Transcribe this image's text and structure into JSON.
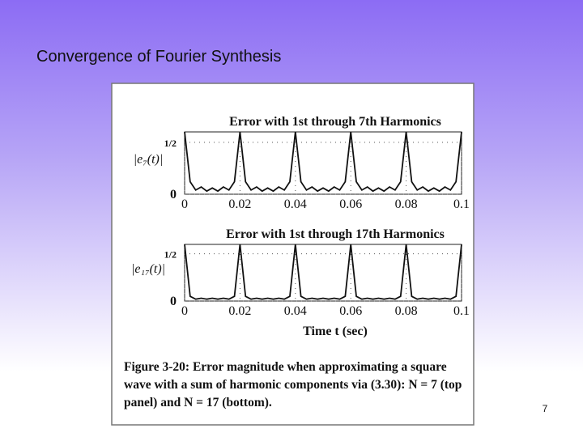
{
  "slide": {
    "title": "Convergence of Fourier Synthesis",
    "page_number": "7"
  },
  "figure": {
    "label": "Figure 3-20:",
    "text": "Error magnitude when approximating a square wave with a sum of harmonic components via (3.30): N = 7 (top panel) and N = 17 (bottom)."
  },
  "chart_data": [
    {
      "type": "line",
      "title": "Error with 1st through 7th Harmonics",
      "ylabel": "|e₇(t)|",
      "color": "#111111",
      "grid": true,
      "xlim": [
        0,
        0.1
      ],
      "xticks": [
        0,
        0.02,
        0.04,
        0.06,
        0.08,
        0.1
      ],
      "ylim": [
        0,
        0.6
      ],
      "yticks": [
        0,
        {
          "value": 0.5,
          "label": "1/2"
        }
      ],
      "x": [
        0,
        0.002,
        0.004,
        0.006,
        0.008,
        0.01,
        0.012,
        0.014,
        0.016,
        0.018,
        0.02,
        0.022,
        0.024,
        0.026,
        0.028,
        0.03,
        0.032,
        0.034,
        0.036,
        0.038,
        0.04,
        0.042,
        0.044,
        0.046,
        0.048,
        0.05,
        0.052,
        0.054,
        0.056,
        0.058,
        0.06,
        0.062,
        0.064,
        0.066,
        0.068,
        0.07,
        0.072,
        0.074,
        0.076,
        0.078,
        0.08,
        0.082,
        0.084,
        0.086,
        0.088,
        0.09,
        0.092,
        0.094,
        0.096,
        0.098,
        0.1
      ],
      "values": [
        0.6,
        0.12,
        0.04,
        0.07,
        0.03,
        0.06,
        0.03,
        0.07,
        0.04,
        0.12,
        0.6,
        0.12,
        0.04,
        0.07,
        0.03,
        0.06,
        0.03,
        0.07,
        0.04,
        0.12,
        0.6,
        0.12,
        0.04,
        0.07,
        0.03,
        0.06,
        0.03,
        0.07,
        0.04,
        0.12,
        0.6,
        0.12,
        0.04,
        0.07,
        0.03,
        0.06,
        0.03,
        0.07,
        0.04,
        0.12,
        0.6,
        0.12,
        0.04,
        0.07,
        0.03,
        0.06,
        0.03,
        0.07,
        0.04,
        0.12,
        0.6
      ]
    },
    {
      "type": "line",
      "title": "Error with 1st through 17th Harmonics",
      "ylabel": "|e₁₇(t)|",
      "xlabel": "Time t (sec)",
      "color": "#111111",
      "grid": true,
      "xlim": [
        0,
        0.1
      ],
      "xticks": [
        0,
        0.02,
        0.04,
        0.06,
        0.08,
        0.1
      ],
      "ylim": [
        0,
        0.6
      ],
      "yticks": [
        0,
        {
          "value": 0.5,
          "label": "1/2"
        }
      ],
      "x": [
        0,
        0.002,
        0.004,
        0.006,
        0.008,
        0.01,
        0.012,
        0.014,
        0.016,
        0.018,
        0.02,
        0.022,
        0.024,
        0.026,
        0.028,
        0.03,
        0.032,
        0.034,
        0.036,
        0.038,
        0.04,
        0.042,
        0.044,
        0.046,
        0.048,
        0.05,
        0.052,
        0.054,
        0.056,
        0.058,
        0.06,
        0.062,
        0.064,
        0.066,
        0.068,
        0.07,
        0.072,
        0.074,
        0.076,
        0.078,
        0.08,
        0.082,
        0.084,
        0.086,
        0.088,
        0.09,
        0.092,
        0.094,
        0.096,
        0.098,
        0.1
      ],
      "values": [
        0.6,
        0.05,
        0.02,
        0.03,
        0.02,
        0.03,
        0.02,
        0.03,
        0.02,
        0.05,
        0.6,
        0.05,
        0.02,
        0.03,
        0.02,
        0.03,
        0.02,
        0.03,
        0.02,
        0.05,
        0.6,
        0.05,
        0.02,
        0.03,
        0.02,
        0.03,
        0.02,
        0.03,
        0.02,
        0.05,
        0.6,
        0.05,
        0.02,
        0.03,
        0.02,
        0.03,
        0.02,
        0.03,
        0.02,
        0.05,
        0.6,
        0.05,
        0.02,
        0.03,
        0.02,
        0.03,
        0.02,
        0.03,
        0.02,
        0.05,
        0.6
      ]
    }
  ]
}
